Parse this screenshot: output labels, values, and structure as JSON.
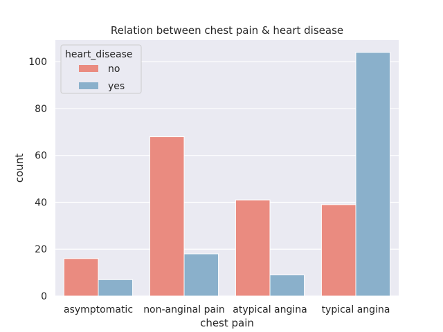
{
  "chart_data": {
    "type": "bar",
    "title": "Relation between chest pain & heart disease",
    "xlabel": "chest pain",
    "ylabel": "count",
    "categories": [
      "asymptomatic",
      "non-anginal pain",
      "atypical angina",
      "typical angina"
    ],
    "series": [
      {
        "name": "no",
        "values": [
          16,
          68,
          41,
          39
        ],
        "color": "#ea8b80"
      },
      {
        "name": "yes",
        "values": [
          7,
          18,
          9,
          104
        ],
        "color": "#8ab0cb"
      }
    ],
    "ylim": [
      0,
      109.2
    ],
    "yticks": [
      0,
      20,
      40,
      60,
      80,
      100
    ],
    "grid": true,
    "legend": {
      "title": "heart_disease",
      "placement": "top-left"
    },
    "colors": {
      "plot_background": "#eaeaf2",
      "grid": "#ffffff"
    }
  }
}
